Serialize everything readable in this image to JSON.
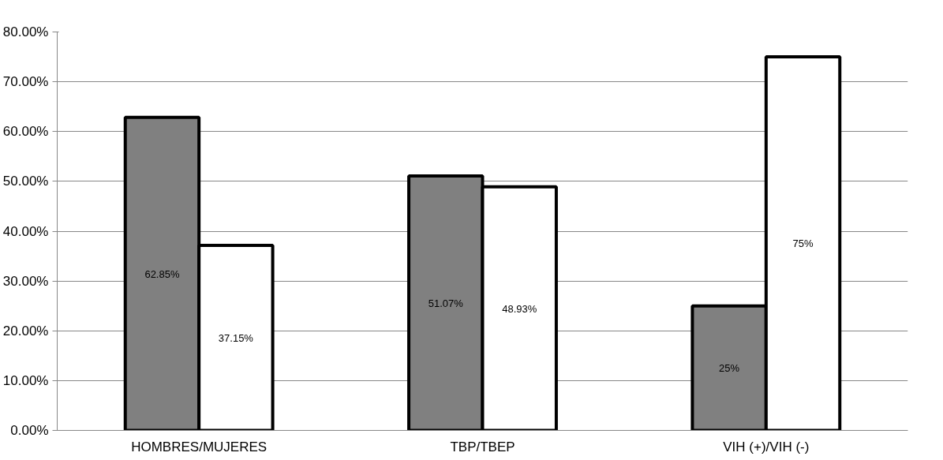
{
  "chart_data": {
    "type": "bar",
    "categories": [
      "HOMBRES/MUJERES",
      "TBP/TBEP",
      "VIH (+)/VIH (-)"
    ],
    "series": [
      {
        "color": "#808080",
        "values": [
          62.85,
          51.07,
          25
        ],
        "value_labels": [
          "62.85%",
          "51.07%",
          "25%"
        ]
      },
      {
        "color": "#ffffff",
        "values": [
          37.15,
          48.93,
          75
        ],
        "value_labels": [
          "37.15%",
          "48.93%",
          "75%"
        ]
      }
    ],
    "ylim": [
      0,
      80
    ],
    "yticks": [
      {
        "value": 0,
        "label": "0.00%"
      },
      {
        "value": 10,
        "label": "10.00%"
      },
      {
        "value": 20,
        "label": "20.00%"
      },
      {
        "value": 30,
        "label": "30.00%"
      },
      {
        "value": 40,
        "label": "40.00%"
      },
      {
        "value": 50,
        "label": "50.00%"
      },
      {
        "value": 60,
        "label": "60.00%"
      },
      {
        "value": 70,
        "label": "70.00%"
      },
      {
        "value": 80,
        "label": "80.00%"
      }
    ],
    "grid": "y"
  }
}
